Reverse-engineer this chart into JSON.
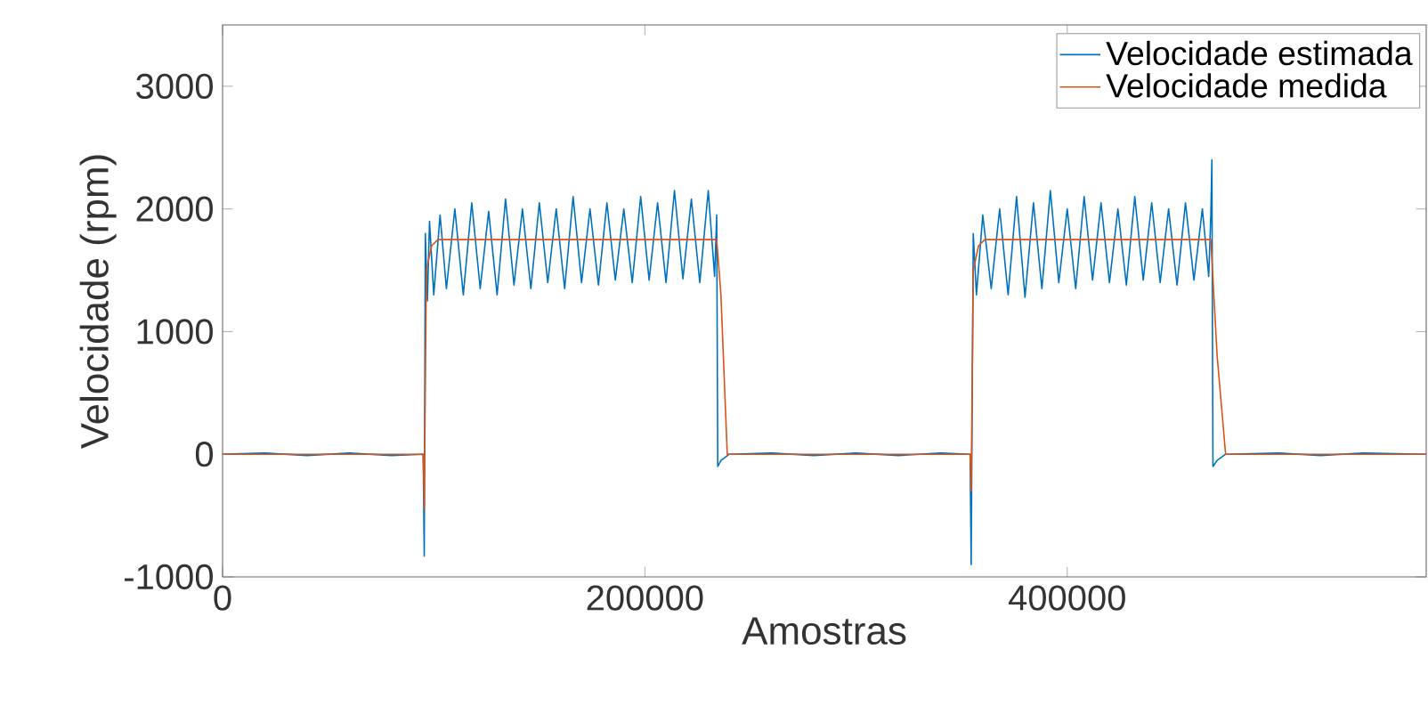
{
  "chart_data": {
    "type": "line",
    "xlabel": "Amostras",
    "ylabel": "Velocidade (rpm)",
    "xlim": [
      0,
      570000
    ],
    "ylim": [
      -1000,
      3500
    ],
    "xticks": [
      0,
      200000,
      400000
    ],
    "yticks": [
      -1000,
      0,
      1000,
      2000,
      3000
    ],
    "grid": false,
    "legend": "top right",
    "line_style": "solid",
    "marker": "none",
    "series": [
      {
        "name": "Velocidade estimada",
        "color": "#0072bd",
        "x": [
          0,
          20000,
          40000,
          60000,
          80000,
          95000,
          95500,
          96000,
          97000,
          98000,
          100000,
          103000,
          106000,
          110000,
          114000,
          118000,
          122000,
          126000,
          130000,
          134000,
          138000,
          142000,
          146000,
          150000,
          154000,
          158000,
          162000,
          166000,
          170000,
          174000,
          178000,
          182000,
          186000,
          190000,
          194000,
          198000,
          202000,
          206000,
          210000,
          214000,
          218000,
          222000,
          226000,
          230000,
          233000,
          234000,
          234500,
          236000,
          240000,
          260000,
          280000,
          300000,
          320000,
          340000,
          354000,
          354500,
          355500,
          357000,
          360000,
          364000,
          368000,
          372000,
          376000,
          380000,
          384000,
          388000,
          392000,
          396000,
          400000,
          404000,
          408000,
          412000,
          416000,
          420000,
          424000,
          428000,
          432000,
          436000,
          440000,
          444000,
          448000,
          452000,
          456000,
          460000,
          464000,
          467000,
          468000,
          468500,
          469000,
          471000,
          475000,
          500000,
          520000,
          540000,
          570000
        ],
        "values": [
          0,
          10,
          -10,
          10,
          -10,
          0,
          -830,
          1800,
          1250,
          1900,
          1300,
          1950,
          1350,
          2000,
          1300,
          2050,
          1350,
          1980,
          1300,
          2080,
          1380,
          2000,
          1350,
          2050,
          1400,
          2000,
          1350,
          2100,
          1400,
          2000,
          1380,
          2050,
          1420,
          2000,
          1400,
          2100,
          1420,
          2050,
          1400,
          2150,
          1430,
          2080,
          1400,
          2150,
          1450,
          1950,
          -100,
          -50,
          0,
          10,
          -10,
          10,
          -10,
          10,
          0,
          -900,
          1800,
          1300,
          1950,
          1350,
          2000,
          1300,
          2100,
          1280,
          2050,
          1350,
          2150,
          1400,
          2000,
          1350,
          2100,
          1420,
          2050,
          1400,
          2000,
          1380,
          2100,
          1420,
          2050,
          1400,
          2000,
          1380,
          2050,
          1420,
          2000,
          1450,
          1950,
          2400,
          -100,
          -50,
          0,
          10,
          -10,
          10,
          0
        ]
      },
      {
        "name": "Velocidade medida",
        "color": "#d95319",
        "x": [
          0,
          20000,
          40000,
          60000,
          80000,
          95000,
          95500,
          96500,
          99000,
          102000,
          120000,
          140000,
          160000,
          180000,
          200000,
          220000,
          234000,
          236000,
          239000,
          260000,
          280000,
          300000,
          320000,
          340000,
          354000,
          354500,
          355500,
          358000,
          361000,
          380000,
          400000,
          420000,
          440000,
          460000,
          468000,
          471000,
          475000,
          500000,
          520000,
          540000,
          570000
        ],
        "values": [
          0,
          0,
          0,
          0,
          0,
          0,
          -450,
          1500,
          1700,
          1750,
          1750,
          1750,
          1750,
          1750,
          1750,
          1750,
          1750,
          1300,
          0,
          0,
          0,
          0,
          0,
          0,
          0,
          -300,
          1500,
          1700,
          1750,
          1750,
          1750,
          1750,
          1750,
          1750,
          1750,
          800,
          0,
          0,
          0,
          0,
          0
        ]
      }
    ]
  }
}
